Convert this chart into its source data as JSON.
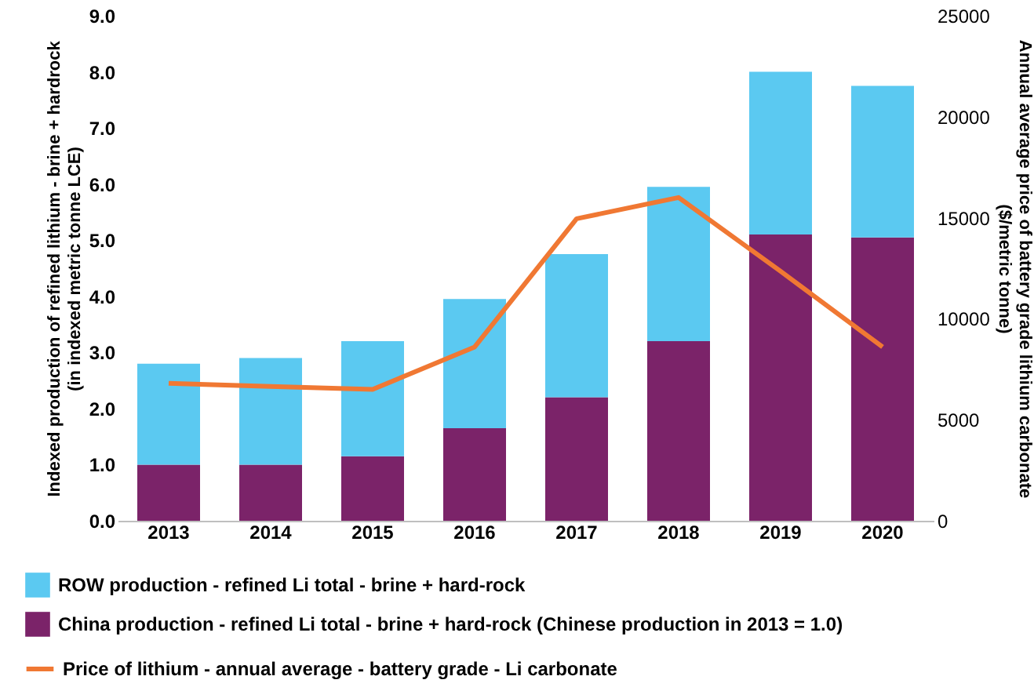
{
  "chart_data": {
    "type": "bar",
    "stacked": true,
    "categories": [
      "2013",
      "2014",
      "2015",
      "2016",
      "2017",
      "2018",
      "2019",
      "2020"
    ],
    "series": [
      {
        "name": "China production - refined Li total - brine + hard-rock (Chinese production in 2013 = 1.0)",
        "color": "#7b2369",
        "values": [
          1.0,
          1.0,
          1.15,
          1.65,
          2.2,
          3.2,
          5.1,
          5.05
        ]
      },
      {
        "name": "ROW production - refined Li total - brine + hard-rock",
        "color": "#5bc9f1",
        "values": [
          1.8,
          1.9,
          2.05,
          2.3,
          2.55,
          2.75,
          2.9,
          2.7
        ]
      },
      {
        "name": "Price of lithium - annual average - battery grade - Li carbonate",
        "color": "#f07833",
        "type": "line",
        "axis": "y2",
        "values": [
          6800,
          6650,
          6500,
          8600,
          14950,
          16000,
          12350,
          8600
        ]
      }
    ],
    "ylabel": "Indexed production of  refined lithium - brine + hardrock\n(in indexed  metric tonne LCE)",
    "y2label": "Annual average price of battery grade lithium carbonate\n($/metric tonne)",
    "ylim": [
      0,
      9
    ],
    "yticks": [
      {
        "value": 0,
        "label": "0.0"
      },
      {
        "value": 1,
        "label": "1.0"
      },
      {
        "value": 2,
        "label": "2.0"
      },
      {
        "value": 3,
        "label": "3.0"
      },
      {
        "value": 4,
        "label": "4.0"
      },
      {
        "value": 5,
        "label": "5.0"
      },
      {
        "value": 6,
        "label": "6.0"
      },
      {
        "value": 7,
        "label": "7.0"
      },
      {
        "value": 8,
        "label": "8.0"
      },
      {
        "value": 9,
        "label": "9.0"
      }
    ],
    "y2lim": [
      0,
      25000
    ],
    "y2ticks": [
      0,
      5000,
      10000,
      15000,
      20000,
      25000
    ],
    "grid": false,
    "legend": "bottom",
    "marker": "none",
    "line_style": "solid"
  }
}
